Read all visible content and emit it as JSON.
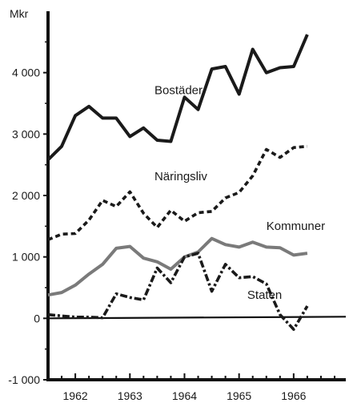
{
  "chart_data": {
    "type": "line",
    "title": "",
    "xlabel": "",
    "ylabel": "Mkr",
    "ylim": [
      -1000,
      5000
    ],
    "xlim": [
      1961.5,
      1966.75
    ],
    "yticks": [
      -1000,
      0,
      1000,
      2000,
      3000,
      4000
    ],
    "ytick_labels": [
      "-1 000",
      "0",
      "1 000",
      "2 000",
      "3 000",
      "4 000"
    ],
    "xticks": [
      1962,
      1963,
      1964,
      1965,
      1966
    ],
    "xtick_labels": [
      "1962",
      "1963",
      "1964",
      "1965",
      "1966"
    ],
    "grid": false,
    "series": [
      {
        "name": "Bostäder",
        "style": "solid",
        "color": "#1a1a1a",
        "x": [
          1961.5,
          1961.75,
          1962.0,
          1962.25,
          1962.5,
          1962.75,
          1963.0,
          1963.25,
          1963.5,
          1963.75,
          1964.0,
          1964.25,
          1964.5,
          1964.75,
          1965.0,
          1965.25,
          1965.5,
          1965.75,
          1966.0,
          1966.25
        ],
        "y": [
          2580,
          2800,
          3300,
          3450,
          3260,
          3260,
          2960,
          3100,
          2900,
          2880,
          3600,
          3400,
          4060,
          4100,
          3650,
          4380,
          4000,
          4080,
          4100,
          4620
        ]
      },
      {
        "name": "Näringsliv",
        "style": "dashed",
        "color": "#1a1a1a",
        "x": [
          1961.5,
          1961.75,
          1962.0,
          1962.25,
          1962.5,
          1962.75,
          1963.0,
          1963.25,
          1963.5,
          1963.75,
          1964.0,
          1964.25,
          1964.5,
          1964.75,
          1965.0,
          1965.25,
          1965.5,
          1965.75,
          1966.0,
          1966.25
        ],
        "y": [
          1280,
          1370,
          1380,
          1600,
          1920,
          1820,
          2060,
          1710,
          1480,
          1760,
          1580,
          1720,
          1740,
          1960,
          2050,
          2320,
          2750,
          2620,
          2780,
          2800
        ]
      },
      {
        "name": "Kommuner",
        "style": "solid-gray",
        "color": "#7a7a7a",
        "x": [
          1961.5,
          1961.75,
          1962.0,
          1962.25,
          1962.5,
          1962.75,
          1963.0,
          1963.25,
          1963.5,
          1963.75,
          1964.0,
          1964.25,
          1964.5,
          1964.75,
          1965.0,
          1965.25,
          1965.5,
          1965.75,
          1966.0,
          1966.25
        ],
        "y": [
          380,
          420,
          540,
          720,
          880,
          1140,
          1170,
          980,
          920,
          800,
          1000,
          1080,
          1300,
          1200,
          1160,
          1240,
          1160,
          1150,
          1030,
          1060
        ]
      },
      {
        "name": "Staten",
        "style": "dash-dot",
        "color": "#1a1a1a",
        "x": [
          1961.5,
          1961.75,
          1962.0,
          1962.25,
          1962.5,
          1962.75,
          1963.0,
          1963.25,
          1963.5,
          1963.75,
          1964.0,
          1964.25,
          1964.5,
          1964.75,
          1965.0,
          1965.25,
          1965.5,
          1965.75,
          1966.0,
          1966.25
        ],
        "y": [
          60,
          40,
          20,
          20,
          10,
          400,
          340,
          300,
          820,
          580,
          1000,
          1060,
          440,
          880,
          660,
          680,
          560,
          60,
          -180,
          200
        ]
      }
    ],
    "labels": [
      {
        "series": "Bostäder",
        "text": "Bostäder",
        "x": 1963.45,
        "y": 3650
      },
      {
        "series": "Näringsliv",
        "text": "Näringsliv",
        "x": 1963.45,
        "y": 2250
      },
      {
        "series": "Kommuner",
        "text": "Kommuner",
        "x": 1965.5,
        "y": 1440
      },
      {
        "series": "Staten",
        "text": "Staten",
        "x": 1965.15,
        "y": 320
      }
    ]
  }
}
